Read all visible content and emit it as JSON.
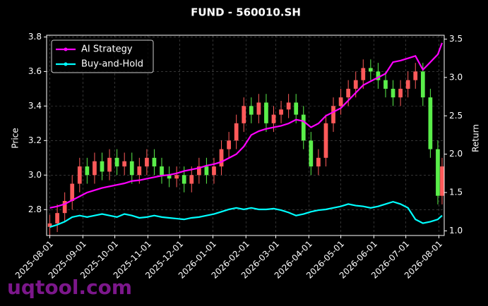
{
  "chart_data": {
    "type": "candlestick_returns",
    "title": "FUND - 560010.SH",
    "ylabel": "Price",
    "y2label": "Return",
    "watermark": "uqtool.com",
    "x": [
      "2025-08-01",
      "2025-08-08",
      "2025-08-15",
      "2025-08-22",
      "2025-08-29",
      "2025-09-05",
      "2025-09-12",
      "2025-09-19",
      "2025-09-26",
      "2025-10-03",
      "2025-10-10",
      "2025-10-17",
      "2025-10-24",
      "2025-10-31",
      "2025-11-07",
      "2025-11-14",
      "2025-11-21",
      "2025-11-28",
      "2025-12-05",
      "2025-12-12",
      "2025-12-19",
      "2025-12-26",
      "2026-01-02",
      "2026-01-09",
      "2026-01-16",
      "2026-01-23",
      "2026-01-30",
      "2026-02-06",
      "2026-02-13",
      "2026-02-20",
      "2026-02-27",
      "2026-03-06",
      "2026-03-13",
      "2026-03-20",
      "2026-03-27",
      "2026-04-03",
      "2026-04-10",
      "2026-04-17",
      "2026-04-24",
      "2026-05-01",
      "2026-05-08",
      "2026-05-15",
      "2026-05-22",
      "2026-05-29",
      "2026-06-05",
      "2026-06-12",
      "2026-06-19",
      "2026-06-26",
      "2026-07-03",
      "2026-07-10",
      "2026-07-17",
      "2026-07-24",
      "2026-07-31",
      "2026-08-04"
    ],
    "candles": {
      "up_color": "#ff5a5a",
      "down_color": "#5aee4a",
      "open": [
        2.7,
        2.72,
        2.78,
        2.85,
        2.95,
        3.05,
        3.0,
        3.08,
        3.02,
        3.1,
        3.05,
        3.08,
        3.0,
        3.05,
        3.1,
        3.05,
        3.0,
        2.98,
        3.0,
        2.95,
        3.0,
        3.05,
        3.0,
        3.05,
        3.15,
        3.2,
        3.3,
        3.4,
        3.35,
        3.42,
        3.3,
        3.35,
        3.38,
        3.42,
        3.35,
        3.2,
        3.05,
        3.1,
        3.3,
        3.4,
        3.45,
        3.5,
        3.55,
        3.62,
        3.6,
        3.55,
        3.5,
        3.45,
        3.5,
        3.55,
        3.6,
        3.45,
        3.15,
        2.88
      ],
      "high": [
        2.77,
        2.83,
        2.9,
        3.0,
        3.1,
        3.1,
        3.13,
        3.13,
        3.15,
        3.15,
        3.13,
        3.13,
        3.1,
        3.15,
        3.15,
        3.1,
        3.05,
        3.05,
        3.05,
        3.05,
        3.1,
        3.1,
        3.1,
        3.2,
        3.25,
        3.35,
        3.45,
        3.45,
        3.47,
        3.47,
        3.4,
        3.43,
        3.47,
        3.47,
        3.4,
        3.25,
        3.15,
        3.35,
        3.45,
        3.5,
        3.55,
        3.6,
        3.67,
        3.67,
        3.65,
        3.6,
        3.55,
        3.55,
        3.6,
        3.65,
        3.65,
        3.5,
        3.2,
        3.1
      ],
      "low": [
        2.65,
        2.67,
        2.73,
        2.8,
        2.9,
        2.95,
        2.95,
        2.97,
        2.97,
        3.0,
        3.0,
        2.95,
        2.95,
        3.0,
        3.0,
        2.95,
        2.93,
        2.93,
        2.9,
        2.9,
        2.95,
        2.95,
        2.95,
        3.0,
        3.1,
        3.15,
        3.25,
        3.3,
        3.3,
        3.25,
        3.25,
        3.3,
        3.33,
        3.3,
        3.15,
        3.0,
        3.0,
        3.05,
        3.25,
        3.35,
        3.4,
        3.45,
        3.5,
        3.55,
        3.5,
        3.45,
        3.4,
        3.4,
        3.45,
        3.5,
        3.4,
        3.1,
        2.83,
        2.83
      ],
      "close": [
        2.72,
        2.78,
        2.85,
        2.95,
        3.05,
        3.0,
        3.08,
        3.02,
        3.1,
        3.05,
        3.08,
        3.0,
        3.05,
        3.1,
        3.05,
        3.0,
        2.98,
        3.0,
        2.95,
        3.0,
        3.05,
        3.0,
        3.05,
        3.15,
        3.2,
        3.3,
        3.4,
        3.35,
        3.42,
        3.3,
        3.35,
        3.38,
        3.42,
        3.35,
        3.2,
        3.05,
        3.1,
        3.3,
        3.4,
        3.45,
        3.5,
        3.55,
        3.62,
        3.6,
        3.55,
        3.5,
        3.45,
        3.5,
        3.55,
        3.6,
        3.45,
        3.15,
        2.88,
        3.05
      ]
    },
    "series": [
      {
        "name": "AI Strategy",
        "color": "#ff00ff",
        "axis": "y2",
        "values": [
          1.3,
          1.32,
          1.35,
          1.4,
          1.45,
          1.5,
          1.53,
          1.56,
          1.58,
          1.6,
          1.62,
          1.65,
          1.66,
          1.68,
          1.7,
          1.72,
          1.73,
          1.75,
          1.78,
          1.8,
          1.82,
          1.85,
          1.87,
          1.9,
          1.95,
          2.0,
          2.1,
          2.25,
          2.3,
          2.33,
          2.35,
          2.37,
          2.4,
          2.45,
          2.43,
          2.35,
          2.4,
          2.5,
          2.55,
          2.6,
          2.7,
          2.8,
          2.9,
          2.95,
          3.0,
          3.05,
          3.2,
          3.22,
          3.25,
          3.28,
          3.1,
          3.2,
          3.3,
          3.45
        ]
      },
      {
        "name": "Buy-and-Hold",
        "color": "#00ffff",
        "axis": "y2",
        "values": [
          1.05,
          1.08,
          1.12,
          1.18,
          1.2,
          1.18,
          1.2,
          1.22,
          1.2,
          1.18,
          1.22,
          1.2,
          1.17,
          1.18,
          1.2,
          1.18,
          1.17,
          1.16,
          1.15,
          1.17,
          1.18,
          1.2,
          1.22,
          1.25,
          1.28,
          1.3,
          1.28,
          1.3,
          1.28,
          1.28,
          1.29,
          1.27,
          1.24,
          1.2,
          1.22,
          1.25,
          1.27,
          1.28,
          1.3,
          1.32,
          1.35,
          1.33,
          1.32,
          1.3,
          1.32,
          1.35,
          1.38,
          1.35,
          1.3,
          1.15,
          1.1,
          1.12,
          1.15,
          1.2
        ]
      }
    ],
    "xlim": [
      "2025-07-29",
      "2026-08-06"
    ],
    "xticks": [
      "2025-08-01",
      "2025-09-01",
      "2025-10-01",
      "2025-11-01",
      "2025-12-01",
      "2026-01-01",
      "2026-02-01",
      "2026-03-01",
      "2026-04-01",
      "2026-05-01",
      "2026-06-01",
      "2026-07-01",
      "2026-08-01"
    ],
    "ylim": [
      2.65,
      3.81
    ],
    "yticks": [
      2.8,
      {
        "value": 3,
        "label": "3.0"
      },
      3.2,
      3.4,
      3.6,
      3.8
    ],
    "y2lim": [
      0.94,
      3.55
    ],
    "y2ticks": [
      {
        "value": 1,
        "label": "1.0"
      },
      1.5,
      {
        "value": 2,
        "label": "2.0"
      },
      2.5,
      {
        "value": 3,
        "label": "3.0"
      },
      3.5
    ],
    "grid": true,
    "legend": "upper left"
  }
}
